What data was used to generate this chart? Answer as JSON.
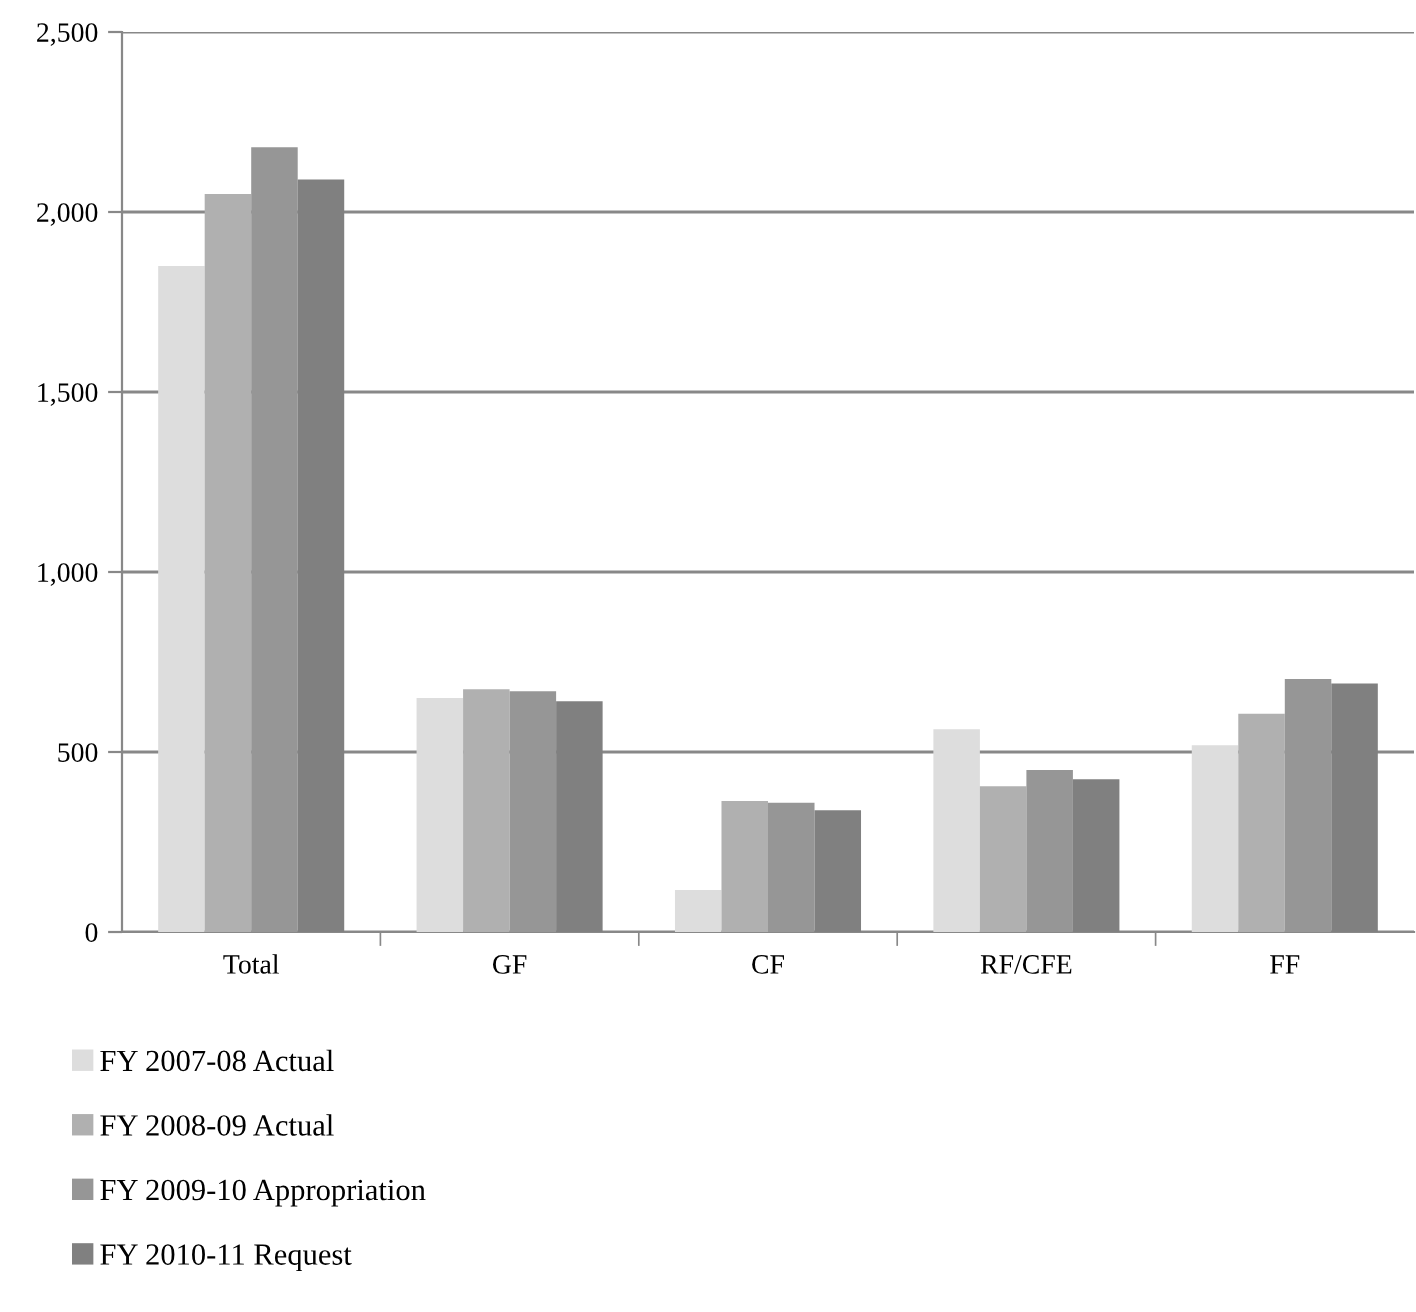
{
  "chart_data": {
    "type": "bar",
    "categories": [
      "Total",
      "GF",
      "CF",
      "RF/CFE",
      "FF"
    ],
    "series": [
      {
        "name": "FY 2007-08 Actual",
        "color": "#dddddd",
        "values": [
          1850,
          650,
          117,
          563,
          519
        ]
      },
      {
        "name": "FY 2008-09 Actual",
        "color": "#b0b0b0",
        "values": [
          2050,
          674,
          364,
          405,
          606
        ]
      },
      {
        "name": "FY 2009-10 Appropriation",
        "color": "#969696",
        "values": [
          2180,
          669,
          359,
          450,
          703
        ]
      },
      {
        "name": "FY 2010-11 Request",
        "color": "#808080",
        "values": [
          2090,
          641,
          338,
          424,
          690
        ]
      }
    ],
    "ylim": [
      0,
      2500
    ],
    "yticks": [
      {
        "value": 0,
        "label": "0"
      },
      {
        "value": 500,
        "label": "500"
      },
      {
        "value": 1000,
        "label": "1,000"
      },
      {
        "value": 1500,
        "label": "1,500"
      },
      {
        "value": 2000,
        "label": "2,000"
      },
      {
        "value": 2500,
        "label": "2,500"
      }
    ],
    "grid": "y",
    "legend": "bottom"
  }
}
